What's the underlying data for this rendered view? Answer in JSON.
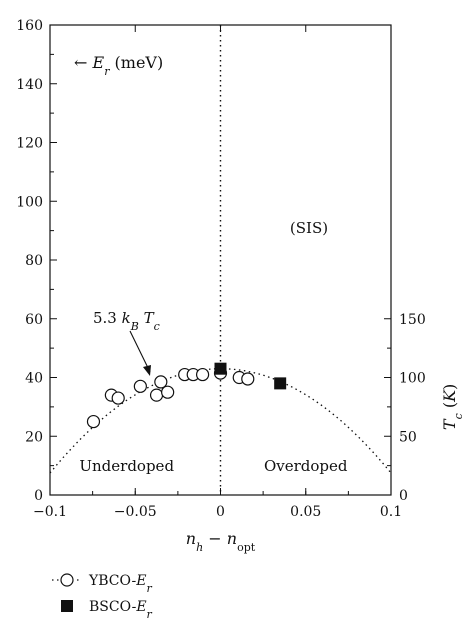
{
  "chart_data": {
    "type": "scatter",
    "xlabel": "n_h − n_opt",
    "xlim": [
      -0.1,
      0.1
    ],
    "xticks": [
      -0.1,
      -0.05,
      0,
      0.05,
      0.1
    ],
    "ylim": [
      0,
      160
    ],
    "yticks": [
      0,
      20,
      40,
      60,
      80,
      100,
      120,
      140,
      160
    ],
    "y_units_label": "← E_r (meV)",
    "right_axis": {
      "label": "T_c (K)",
      "ticks": [
        0,
        50,
        100,
        150
      ]
    },
    "annotations": {
      "fit_label": "5.3 k_B T_c",
      "sis_label": "(SIS)",
      "underdoped": "Underdoped",
      "overdoped": "Overdoped"
    },
    "series": [
      {
        "name": "YBCO-E_r",
        "marker": "open-circle",
        "points": [
          [
            -0.0745,
            25
          ],
          [
            -0.064,
            34
          ],
          [
            -0.06,
            33
          ],
          [
            -0.047,
            37
          ],
          [
            -0.0375,
            34
          ],
          [
            -0.035,
            38.5
          ],
          [
            -0.031,
            35
          ],
          [
            -0.021,
            41
          ],
          [
            -0.016,
            41
          ],
          [
            -0.0105,
            41
          ],
          [
            0,
            41.5
          ],
          [
            0.011,
            40
          ],
          [
            0.016,
            39.5
          ]
        ]
      },
      {
        "name": "BSCO-E_r",
        "marker": "filled-square",
        "points": [
          [
            0,
            43
          ],
          [
            0.035,
            38
          ]
        ]
      }
    ],
    "fit_curve": {
      "style": "dotted",
      "form": "5.3*(1 - 82.6*x^2)",
      "peak": 43,
      "vertical_line_x": 0,
      "vertical_line_top": 91
    },
    "legend": {
      "placement": "below",
      "entries": [
        "YBCO-E_r",
        "BSCO-E_r"
      ]
    },
    "grid": false
  }
}
